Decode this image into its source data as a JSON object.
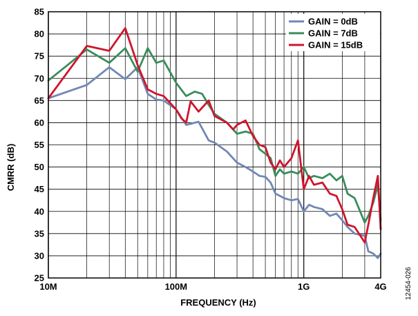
{
  "chart_data": {
    "type": "line",
    "xlabel": "FREQUENCY (Hz)",
    "ylabel": "CMRR (dB)",
    "x_scale": "log",
    "xlim": [
      10000000,
      4000000000
    ],
    "ylim": [
      25,
      85
    ],
    "grid": true,
    "legend_position": "top-right",
    "x_ticks": [
      {
        "value": 10000000,
        "label": "10M"
      },
      {
        "value": 100000000,
        "label": "100M"
      },
      {
        "value": 1000000000,
        "label": "1G"
      },
      {
        "value": 4000000000,
        "label": "4G"
      }
    ],
    "y_ticks": [
      25,
      30,
      35,
      40,
      45,
      50,
      55,
      60,
      65,
      70,
      75,
      80,
      85
    ],
    "series": [
      {
        "name": "GAIN = 0dB",
        "color": "#7088b4",
        "x": [
          10000000,
          20000000,
          30000000,
          40000000,
          50000000,
          60000000,
          70000000,
          80000000,
          100000000,
          120000000,
          150000000,
          180000000,
          200000000,
          250000000,
          300000000,
          350000000,
          400000000,
          450000000,
          500000000,
          550000000,
          600000000,
          650000000,
          700000000,
          800000000,
          900000000,
          1000000000,
          1100000000,
          1200000000,
          1400000000,
          1600000000,
          1800000000,
          2000000000,
          2200000000,
          2500000000,
          3000000000,
          3200000000,
          3500000000,
          3800000000,
          4000000000
        ],
        "y": [
          65.5,
          68.5,
          72.5,
          69.8,
          72.5,
          66.5,
          65.2,
          65.0,
          63.0,
          59.5,
          60.2,
          56.0,
          55.5,
          53.5,
          51.0,
          50.0,
          49.0,
          48.0,
          47.8,
          46.5,
          44.0,
          43.5,
          43.0,
          42.5,
          42.8,
          40.0,
          41.5,
          41.0,
          40.5,
          39.0,
          39.5,
          38.0,
          36.5,
          35.0,
          34.5,
          31.0,
          30.5,
          29.5,
          30.5
        ]
      },
      {
        "name": "GAIN = 7dB",
        "color": "#3a8c5a",
        "x": [
          10000000,
          20000000,
          30000000,
          40000000,
          50000000,
          60000000,
          70000000,
          80000000,
          100000000,
          120000000,
          140000000,
          160000000,
          180000000,
          200000000,
          250000000,
          300000000,
          350000000,
          400000000,
          450000000,
          500000000,
          550000000,
          600000000,
          650000000,
          700000000,
          800000000,
          900000000,
          1000000000,
          1100000000,
          1200000000,
          1400000000,
          1600000000,
          1800000000,
          2000000000,
          2200000000,
          2500000000,
          3000000000,
          3200000000,
          3500000000,
          3800000000,
          4000000000
        ],
        "y": [
          69.5,
          76.5,
          73.5,
          76.8,
          71.5,
          76.8,
          73.5,
          74.0,
          69.0,
          66.0,
          67.0,
          66.5,
          64.0,
          62.0,
          60.0,
          57.5,
          58.0,
          57.5,
          54.0,
          53.0,
          52.0,
          48.0,
          49.5,
          48.5,
          49.0,
          48.5,
          50.0,
          47.5,
          48.0,
          47.5,
          48.5,
          47.0,
          48.0,
          44.0,
          43.0,
          37.5,
          39.0,
          42.0,
          46.0,
          38.0
        ]
      },
      {
        "name": "GAIN = 15dB",
        "color": "#d0142c",
        "x": [
          10000000,
          20000000,
          30000000,
          40000000,
          50000000,
          60000000,
          70000000,
          80000000,
          100000000,
          110000000,
          120000000,
          130000000,
          150000000,
          180000000,
          200000000,
          250000000,
          280000000,
          300000000,
          350000000,
          400000000,
          450000000,
          500000000,
          550000000,
          600000000,
          650000000,
          700000000,
          800000000,
          900000000,
          1000000000,
          1100000000,
          1200000000,
          1400000000,
          1600000000,
          1800000000,
          2000000000,
          2200000000,
          2500000000,
          3000000000,
          3200000000,
          3500000000,
          3800000000,
          4000000000
        ],
        "y": [
          65.5,
          77.3,
          76.2,
          81.3,
          73.0,
          67.5,
          66.5,
          66.0,
          63.0,
          61.0,
          60.0,
          64.8,
          62.5,
          65.0,
          61.5,
          60.0,
          58.5,
          59.5,
          60.5,
          57.0,
          55.0,
          54.5,
          51.0,
          49.5,
          51.5,
          50.0,
          52.0,
          56.0,
          45.0,
          48.0,
          46.0,
          46.5,
          44.0,
          43.5,
          40.5,
          37.0,
          36.5,
          33.0,
          37.0,
          43.0,
          48.0,
          36.0
        ]
      }
    ]
  },
  "figure_id": "12454-026"
}
